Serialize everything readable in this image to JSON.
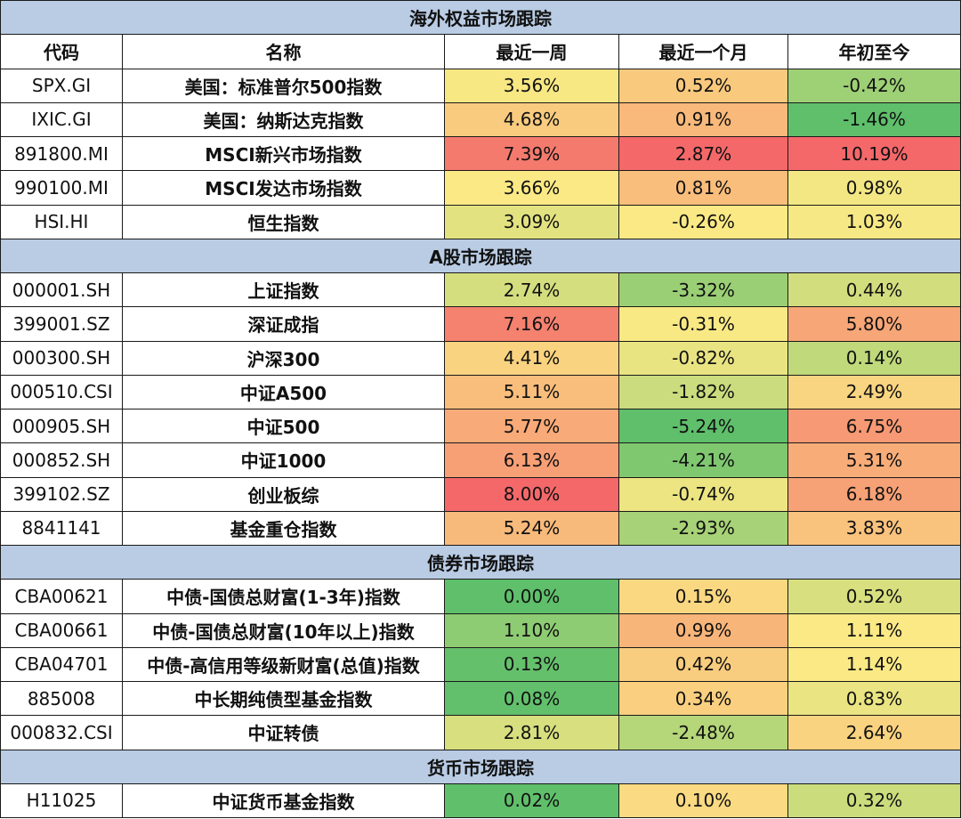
{
  "colors": {
    "section_bg": "#b9cce4",
    "border": "#1a1a1a",
    "scale_green": "#5fbf6b",
    "scale_yellow": "#fbe985",
    "scale_red": "#f4686a"
  },
  "header": {
    "code": "代码",
    "name": "名称",
    "week": "最近一周",
    "month": "最近一个月",
    "ytd": "年初至今"
  },
  "sections": [
    {
      "title": "海外权益市场跟踪",
      "rows": [
        {
          "code": "SPX.GI",
          "name": "美国：标准普尔500指数",
          "week": "3.56%",
          "month": "0.52%",
          "ytd": "-0.42%"
        },
        {
          "code": "IXIC.GI",
          "name": "美国：纳斯达克指数",
          "week": "4.68%",
          "month": "0.91%",
          "ytd": "-1.46%"
        },
        {
          "code": "891800.MI",
          "name": "MSCI新兴市场指数",
          "week": "7.39%",
          "month": "2.87%",
          "ytd": "10.19%"
        },
        {
          "code": "990100.MI",
          "name": "MSCI发达市场指数",
          "week": "3.66%",
          "month": "0.81%",
          "ytd": "0.98%"
        },
        {
          "code": "HSI.HI",
          "name": "恒生指数",
          "week": "3.09%",
          "month": "-0.26%",
          "ytd": "1.03%"
        }
      ]
    },
    {
      "title": "A股市场跟踪",
      "rows": [
        {
          "code": "000001.SH",
          "name": "上证指数",
          "week": "2.74%",
          "month": "-3.32%",
          "ytd": "0.44%"
        },
        {
          "code": "399001.SZ",
          "name": "深证成指",
          "week": "7.16%",
          "month": "-0.31%",
          "ytd": "5.80%"
        },
        {
          "code": "000300.SH",
          "name": "沪深300",
          "week": "4.41%",
          "month": "-0.82%",
          "ytd": "0.14%"
        },
        {
          "code": "000510.CSI",
          "name": "中证A500",
          "week": "5.11%",
          "month": "-1.82%",
          "ytd": "2.49%"
        },
        {
          "code": "000905.SH",
          "name": "中证500",
          "week": "5.77%",
          "month": "-5.24%",
          "ytd": "6.75%"
        },
        {
          "code": "000852.SH",
          "name": "中证1000",
          "week": "6.13%",
          "month": "-4.21%",
          "ytd": "5.31%"
        },
        {
          "code": "399102.SZ",
          "name": "创业板综",
          "week": "8.00%",
          "month": "-0.74%",
          "ytd": "6.18%"
        },
        {
          "code": "8841141",
          "name": "基金重仓指数",
          "week": "5.24%",
          "month": "-2.93%",
          "ytd": "3.83%"
        }
      ]
    },
    {
      "title": "债券市场跟踪",
      "rows": [
        {
          "code": "CBA00621",
          "name": "中债-国债总财富(1-3年)指数",
          "week": "0.00%",
          "month": "0.15%",
          "ytd": "0.52%"
        },
        {
          "code": "CBA00661",
          "name": "中债-国债总财富(10年以上)指数",
          "week": "1.10%",
          "month": "0.99%",
          "ytd": "1.11%"
        },
        {
          "code": "CBA04701",
          "name": "中债-高信用等级新财富(总值)指数",
          "week": "0.13%",
          "month": "0.42%",
          "ytd": "1.14%"
        },
        {
          "code": "885008",
          "name": "中长期纯债型基金指数",
          "week": "0.08%",
          "month": "0.34%",
          "ytd": "0.83%"
        },
        {
          "code": "000832.CSI",
          "name": "中证转债",
          "week": "2.81%",
          "month": "-2.48%",
          "ytd": "2.64%"
        }
      ]
    },
    {
      "title": "货币市场跟踪",
      "rows": [
        {
          "code": "H11025",
          "name": "中证货币基金指数",
          "week": "0.02%",
          "month": "0.10%",
          "ytd": "0.32%"
        }
      ]
    }
  ]
}
